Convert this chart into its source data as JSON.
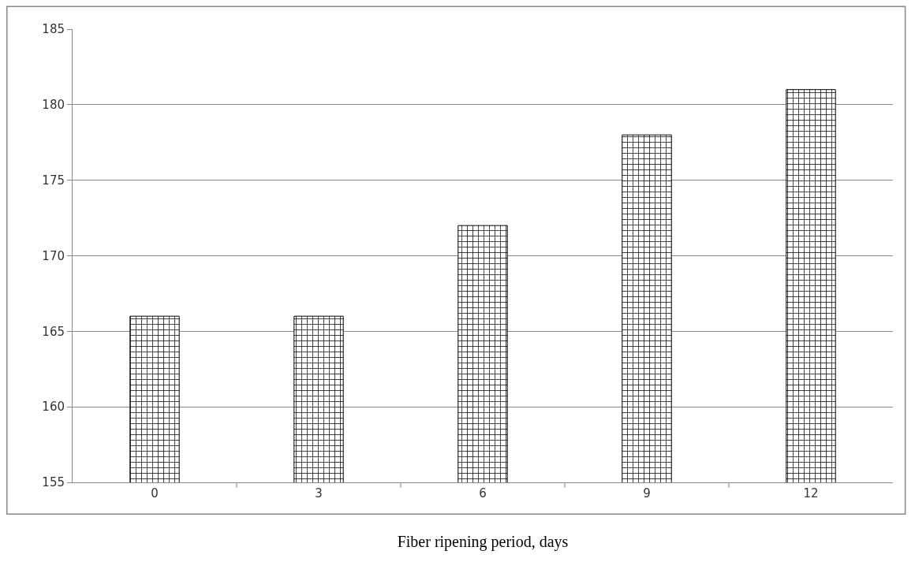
{
  "chart_data": {
    "type": "bar",
    "xlabel": "Fiber ripening period, days",
    "categories": [
      "0",
      "3",
      "6",
      "9",
      "12"
    ],
    "values": [
      166,
      166,
      172,
      178,
      181
    ],
    "color": "#000000",
    "ylim": [
      155,
      185
    ],
    "yticks": [
      155,
      160,
      165,
      170,
      175,
      180,
      185
    ],
    "grid": "y"
  }
}
